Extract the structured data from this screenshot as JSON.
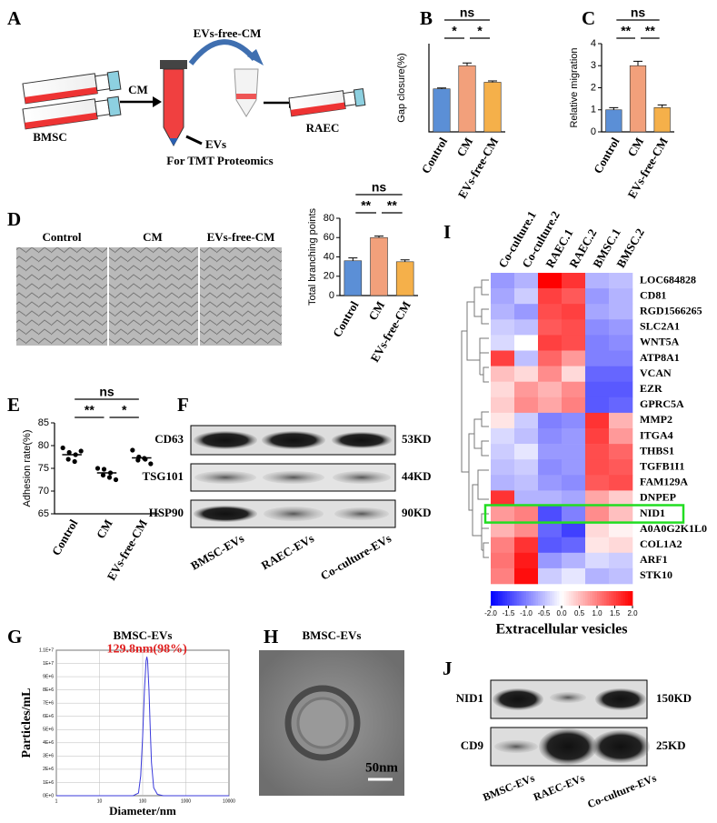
{
  "panel_labels": [
    "A",
    "B",
    "C",
    "D",
    "E",
    "F",
    "G",
    "H",
    "I",
    "J"
  ],
  "panel_a": {
    "top_label": "EVs-free-CM",
    "arrow_label": "CM",
    "source": "BMSC",
    "target": "RAEC",
    "ev_label": "EVs",
    "ev_note": "For TMT Proteomics"
  },
  "panel_d": {
    "image_labels": [
      "Control",
      "CM",
      "EVs-free-CM"
    ]
  },
  "panel_f": {
    "proteins": [
      "CD63",
      "TSG101",
      "HSP90"
    ],
    "sizes": [
      "53KD",
      "44KD",
      "90KD"
    ],
    "lanes": [
      "BMSC-EVs",
      "RAEC-EVs",
      "Co-culture-EVs"
    ]
  },
  "panel_h": {
    "title": "BMSC-EVs",
    "scale_bar": "50nm"
  },
  "panel_j": {
    "proteins": [
      "NID1",
      "CD9"
    ],
    "sizes": [
      "150KD",
      "25KD"
    ],
    "lanes": [
      "BMSC-EVs",
      "RAEC-EVs",
      "Co-culture-EVs"
    ]
  },
  "chart_data": [
    {
      "type": "bar",
      "ylabel": "Gap closure(%)",
      "categories": [
        "Control",
        "CM",
        "EVs-free-CM"
      ],
      "values": [
        39,
        60,
        45
      ],
      "errors": [
        0.8,
        2.5,
        1.2
      ],
      "colors": [
        "#5b8fd6",
        "#f2a07b",
        "#f5b04a"
      ],
      "ylim": [
        0,
        80
      ],
      "comparisons": [
        {
          "label": "ns",
          "pair": [
            "Control",
            "EVs-free-CM"
          ]
        },
        {
          "label": "*",
          "pair": [
            "Control",
            "CM"
          ]
        },
        {
          "label": "*",
          "pair": [
            "CM",
            "EVs-free-CM"
          ]
        }
      ]
    },
    {
      "type": "bar",
      "ylabel": "Relative migration",
      "categories": [
        "Control",
        "CM",
        "EVs-free-CM"
      ],
      "values": [
        1.0,
        3.0,
        1.1
      ],
      "errors": [
        0.1,
        0.2,
        0.12
      ],
      "colors": [
        "#5b8fd6",
        "#f2a07b",
        "#f5b04a"
      ],
      "ylim": [
        0,
        4
      ],
      "yticks": [
        0,
        1,
        2,
        3,
        4
      ],
      "comparisons": [
        {
          "label": "ns",
          "pair": [
            "Control",
            "EVs-free-CM"
          ]
        },
        {
          "label": "**",
          "pair": [
            "Control",
            "CM"
          ]
        },
        {
          "label": "**",
          "pair": [
            "CM",
            "EVs-free-CM"
          ]
        }
      ]
    },
    {
      "type": "bar",
      "ylabel": "Total branching points",
      "categories": [
        "Control",
        "CM",
        "EVs-free-CM"
      ],
      "values": [
        36,
        60,
        35
      ],
      "errors": [
        3,
        1.5,
        2
      ],
      "colors": [
        "#5b8fd6",
        "#f2a07b",
        "#f5b04a"
      ],
      "ylim": [
        0,
        80
      ],
      "yticks": [
        0,
        20,
        40,
        60,
        80
      ],
      "comparisons": [
        {
          "label": "ns",
          "pair": [
            "Control",
            "EVs-free-CM"
          ]
        },
        {
          "label": "**",
          "pair": [
            "Control",
            "CM"
          ]
        },
        {
          "label": "**",
          "pair": [
            "CM",
            "EVs-free-CM"
          ]
        }
      ]
    },
    {
      "type": "strip",
      "ylabel": "Adhesion rate(%)",
      "categories": [
        "Control",
        "CM",
        "EVs-free-CM"
      ],
      "values": [
        78,
        74,
        77.3
      ],
      "points": [
        [
          79.5,
          78.5,
          78,
          77,
          76.5,
          78.8
        ],
        [
          75,
          74.8,
          74,
          73.5,
          73,
          72.5
        ],
        [
          79,
          77.5,
          77,
          76.8,
          77.2,
          76
        ]
      ],
      "color": "#000000",
      "ylim": [
        65,
        85
      ],
      "yticks": [
        65,
        70,
        75,
        80,
        85
      ],
      "comparisons": [
        {
          "label": "ns",
          "pair": [
            "Control",
            "EVs-free-CM"
          ]
        },
        {
          "label": "**",
          "pair": [
            "Control",
            "CM"
          ]
        },
        {
          "label": "*",
          "pair": [
            "CM",
            "EVs-free-CM"
          ]
        }
      ]
    },
    {
      "type": "line",
      "title": "BMSC-EVs",
      "xlabel": "Diameter/nm",
      "ylabel": "Particles/mL",
      "peak_label": "129.8nm(98%)",
      "x": [
        1,
        60,
        80,
        90,
        100,
        110,
        120,
        125,
        130,
        140,
        150,
        160,
        180,
        220,
        300,
        10000
      ],
      "values": [
        0,
        0,
        200000,
        1500000,
        4500000,
        8000000,
        10200000,
        10500000,
        10200000,
        8000000,
        5000000,
        2500000,
        600000,
        100000,
        0,
        0
      ],
      "color": "#3a3adb",
      "xscale": "log",
      "grid": true,
      "xlim": [
        1,
        10000
      ],
      "xticks": [
        1,
        10,
        100,
        1000,
        10000
      ],
      "ylim": [
        0,
        11000000
      ],
      "yticks": [
        {
          "value": 0,
          "label": "0E+0"
        },
        {
          "value": 1000000,
          "label": "1E+6"
        },
        {
          "value": 2000000,
          "label": "2E+6"
        },
        {
          "value": 3000000,
          "label": "3E+6"
        },
        {
          "value": 4000000,
          "label": "4E+6"
        },
        {
          "value": 5000000,
          "label": "5E+6"
        },
        {
          "value": 6000000,
          "label": "6E+6"
        },
        {
          "value": 7000000,
          "label": "7E+6"
        },
        {
          "value": 8000000,
          "label": "8E+6"
        },
        {
          "value": 9000000,
          "label": "9E+6"
        },
        {
          "value": 10000000,
          "label": "1E+7"
        },
        {
          "value": 11000000,
          "label": "1.1E+7"
        }
      ]
    },
    {
      "type": "heatmap",
      "title": "Extracellular vesicles",
      "columns": [
        "Co-culture.1",
        "Co-culture.2",
        "RAEC.1",
        "RAEC.2",
        "BMSC.1",
        "BMSC.2"
      ],
      "rows": [
        "LOC684828",
        "CD81",
        "RGD1566265",
        "SLC2A1",
        "WNT5A",
        "ATP8A1",
        "VCAN",
        "EZR",
        "GPRC5A",
        "MMP2",
        "ITGA4",
        "THBS1",
        "TGFB1I1",
        "FAM129A",
        "DNPEP",
        "NID1",
        "A0A0G2K1L0",
        "COL1A2",
        "ARF1",
        "STK10"
      ],
      "values": [
        [
          -0.8,
          -0.6,
          2.0,
          1.6,
          -0.6,
          -0.5
        ],
        [
          -0.7,
          -0.4,
          1.5,
          1.3,
          -0.8,
          -0.6
        ],
        [
          -0.6,
          -0.8,
          1.4,
          1.5,
          -0.7,
          -0.6
        ],
        [
          -0.4,
          -0.5,
          1.3,
          1.4,
          -0.9,
          -0.8
        ],
        [
          -0.3,
          0.0,
          1.5,
          1.4,
          -1.0,
          -0.9
        ],
        [
          1.5,
          -0.5,
          1.2,
          0.8,
          -1.0,
          -1.0
        ],
        [
          0.5,
          0.3,
          0.9,
          0.3,
          -1.2,
          -1.2
        ],
        [
          0.3,
          0.8,
          0.6,
          0.9,
          -1.3,
          -1.3
        ],
        [
          0.4,
          0.9,
          0.7,
          1.0,
          -1.3,
          -1.2
        ],
        [
          0.2,
          -0.4,
          -1.0,
          -0.9,
          1.6,
          0.6
        ],
        [
          -0.3,
          -0.5,
          -0.9,
          -0.8,
          1.5,
          0.8
        ],
        [
          -0.4,
          -0.2,
          -0.8,
          -0.8,
          1.4,
          1.2
        ],
        [
          -0.5,
          -0.4,
          -0.9,
          -0.8,
          1.4,
          1.3
        ],
        [
          -0.6,
          -0.5,
          -0.8,
          -0.9,
          1.3,
          1.4
        ],
        [
          1.6,
          -0.6,
          -0.6,
          -0.7,
          0.7,
          0.4
        ],
        [
          0.8,
          1.0,
          -1.4,
          -1.0,
          0.9,
          0.5
        ],
        [
          0.6,
          0.9,
          -1.2,
          -1.5,
          0.3,
          0.1
        ],
        [
          1.0,
          1.6,
          -1.3,
          -1.2,
          0.2,
          0.3
        ],
        [
          1.1,
          1.8,
          -0.8,
          -0.6,
          -0.3,
          -0.4
        ],
        [
          1.0,
          1.9,
          -0.4,
          -0.2,
          -0.6,
          -0.5
        ]
      ],
      "clim": [
        -2,
        2
      ],
      "colors": [
        "#0000ff",
        "#ffffff",
        "#ff0000"
      ],
      "highlight": "NID1",
      "highlight_color": "#22dd22",
      "colorbar_ticks": [
        {
          "value": -2,
          "label": "-2.0"
        },
        -1.5,
        {
          "value": -1,
          "label": "-1.0"
        },
        -0.5,
        {
          "value": 0,
          "label": "0.0"
        },
        0.5,
        {
          "value": 1,
          "label": "1.0"
        },
        1.5,
        {
          "value": 2,
          "label": "2.0"
        }
      ]
    }
  ]
}
